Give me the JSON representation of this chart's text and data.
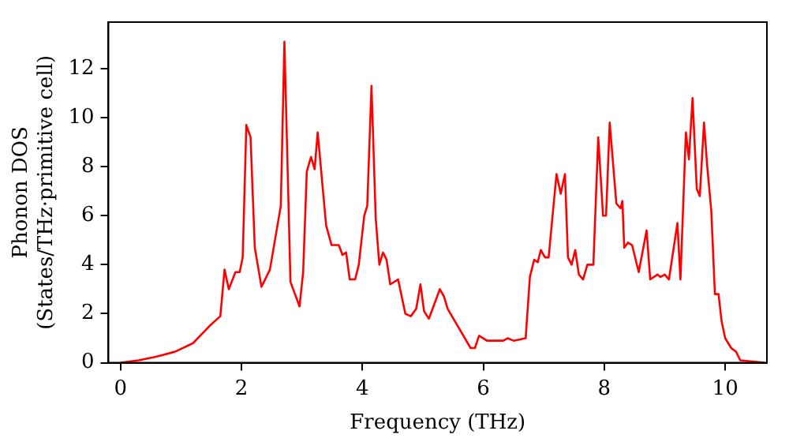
{
  "chart_data": {
    "type": "line",
    "xlabel": "Frequency (THz)",
    "ylabel": "Phonon DOS\n(States/THz·primitive cell)",
    "xlim": [
      -0.2,
      10.69
    ],
    "ylim": [
      0,
      13.9
    ],
    "xticks": [
      0,
      2,
      4,
      6,
      8,
      10
    ],
    "yticks": [
      0,
      2,
      4,
      6,
      8,
      10,
      12
    ],
    "grid": false,
    "legend": false,
    "marker": "none",
    "line_style": "solid",
    "series": [
      {
        "color": "#ff0000",
        "x": [
          0,
          0.3,
          0.6,
          0.9,
          1.2,
          1.47,
          1.65,
          1.72,
          1.79,
          1.9,
          1.97,
          2.02,
          2.08,
          2.15,
          2.22,
          2.33,
          2.47,
          2.65,
          2.71,
          2.81,
          2.96,
          3.02,
          3.08,
          3.15,
          3.21,
          3.26,
          3.4,
          3.49,
          3.61,
          3.67,
          3.73,
          3.79,
          3.88,
          3.94,
          4.03,
          4.08,
          4.15,
          4.22,
          4.28,
          4.34,
          4.4,
          4.46,
          4.59,
          4.71,
          4.8,
          4.89,
          4.96,
          5.02,
          5.1,
          5.28,
          5.35,
          5.41,
          5.79,
          5.86,
          5.93,
          6.06,
          6.33,
          6.4,
          6.5,
          6.7,
          6.77,
          6.84,
          6.9,
          6.95,
          7.02,
          7.08,
          7.21,
          7.28,
          7.35,
          7.4,
          7.46,
          7.52,
          7.58,
          7.65,
          7.72,
          7.82,
          7.9,
          7.98,
          8.03,
          8.09,
          8.2,
          8.27,
          8.3,
          8.33,
          8.39,
          8.46,
          8.57,
          8.7,
          8.76,
          8.88,
          8.93,
          9.0,
          9.07,
          9.21,
          9.26,
          9.28,
          9.35,
          9.4,
          9.46,
          9.53,
          9.58,
          9.65,
          9.7,
          9.77,
          9.83,
          9.89,
          9.94,
          10.0,
          10.1,
          10.18,
          10.25,
          10.65
        ],
        "values": [
          0,
          0.1,
          0.25,
          0.45,
          0.8,
          1.5,
          1.9,
          3.8,
          3.0,
          3.7,
          3.7,
          4.3,
          9.7,
          9.2,
          4.7,
          3.1,
          3.8,
          6.4,
          13.1,
          3.3,
          2.3,
          3.7,
          7.8,
          8.4,
          7.9,
          9.4,
          5.6,
          4.8,
          4.8,
          4.4,
          4.5,
          3.4,
          3.4,
          4.0,
          6.0,
          6.4,
          11.3,
          5.9,
          4.0,
          4.5,
          4.2,
          3.2,
          3.4,
          2.0,
          1.9,
          2.2,
          3.2,
          2.1,
          1.8,
          3.0,
          2.7,
          2.2,
          0.6,
          0.6,
          1.1,
          0.9,
          0.9,
          1.0,
          0.9,
          1.0,
          3.5,
          4.2,
          4.1,
          4.6,
          4.3,
          4.3,
          7.7,
          6.9,
          7.7,
          4.3,
          4.0,
          4.6,
          3.6,
          3.4,
          4.0,
          4.0,
          9.2,
          6.0,
          6.0,
          9.8,
          6.5,
          6.3,
          6.6,
          4.7,
          4.9,
          4.8,
          3.7,
          5.4,
          3.4,
          3.6,
          3.5,
          3.6,
          3.4,
          5.7,
          3.4,
          3.4,
          9.4,
          8.3,
          10.8,
          7.1,
          6.8,
          9.8,
          8.1,
          6.2,
          2.8,
          2.8,
          1.7,
          1.0,
          0.6,
          0.45,
          0.1,
          0
        ]
      }
    ]
  }
}
